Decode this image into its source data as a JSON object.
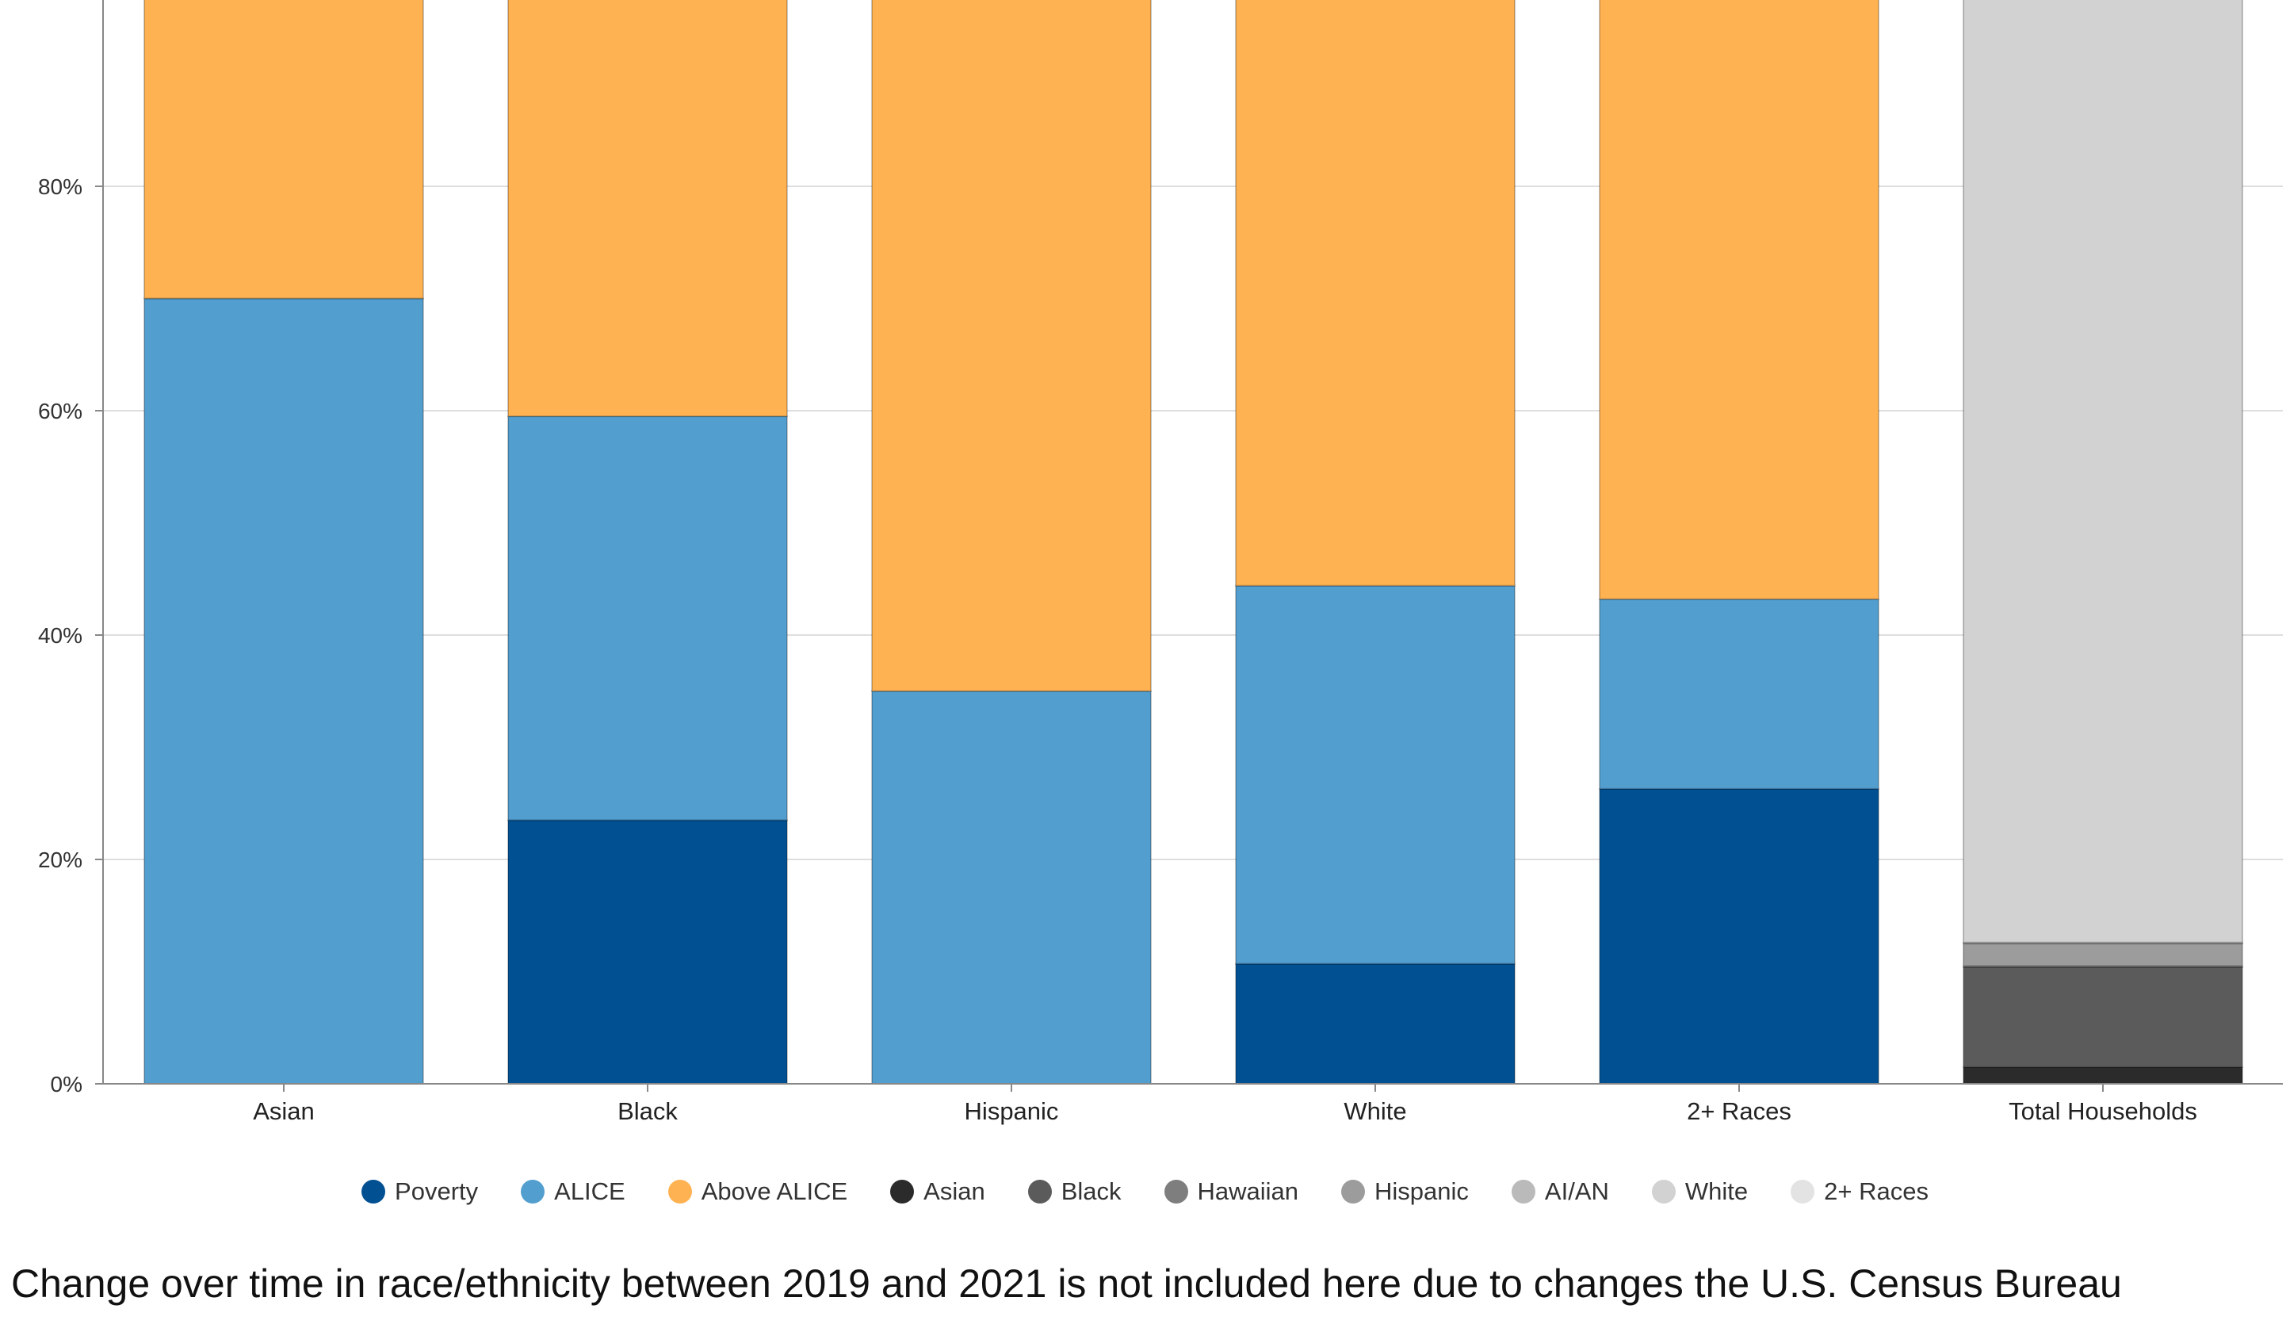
{
  "chart_data": {
    "type": "bar",
    "stacked": true,
    "categories": [
      "Asian",
      "Black",
      "Hispanic",
      "White",
      "2+ Races",
      "Total Households"
    ],
    "ylim": [
      0,
      100
    ],
    "y_ticks": [
      0,
      20,
      40,
      60,
      80
    ],
    "y_tick_labels": [
      "0%",
      "20%",
      "40%",
      "60%",
      "80%"
    ],
    "grid": true,
    "legend_placement": "bottom",
    "series": [
      {
        "name": "Poverty",
        "color": "#005092",
        "values": [
          0,
          23.5,
          0,
          10.7,
          26.3,
          null
        ]
      },
      {
        "name": "ALICE",
        "color": "#529ECF",
        "values": [
          70,
          36,
          35,
          33.7,
          16.9,
          null
        ]
      },
      {
        "name": "Above ALICE",
        "color": "#FFB252",
        "values": [
          30,
          40.5,
          65,
          55.6,
          56.8,
          null
        ]
      },
      {
        "name": "Asian",
        "color": "#2B2B2B",
        "values": [
          null,
          null,
          null,
          null,
          null,
          1.5
        ]
      },
      {
        "name": "Black",
        "color": "#5B5B5B",
        "values": [
          null,
          null,
          null,
          null,
          null,
          8.9
        ]
      },
      {
        "name": "Hawaiian",
        "color": "#7E7E7E",
        "values": [
          null,
          null,
          null,
          null,
          null,
          0.1
        ]
      },
      {
        "name": "Hispanic",
        "color": "#9C9C9C",
        "values": [
          null,
          null,
          null,
          null,
          null,
          2
        ]
      },
      {
        "name": "AI/AN",
        "color": "#BABABA",
        "values": [
          null,
          null,
          null,
          null,
          null,
          0.1
        ]
      },
      {
        "name": "White",
        "color": "#D2D2D2",
        "values": [
          null,
          null,
          null,
          null,
          null,
          87.4
        ]
      },
      {
        "name": "2+ Races",
        "color": "#E3E3E3",
        "values": [
          null,
          null,
          null,
          null,
          null,
          0
        ]
      }
    ]
  },
  "footnote": "Change over time in race/ethnicity between 2019 and 2021 is not included here due to changes the U.S. Census Bureau"
}
